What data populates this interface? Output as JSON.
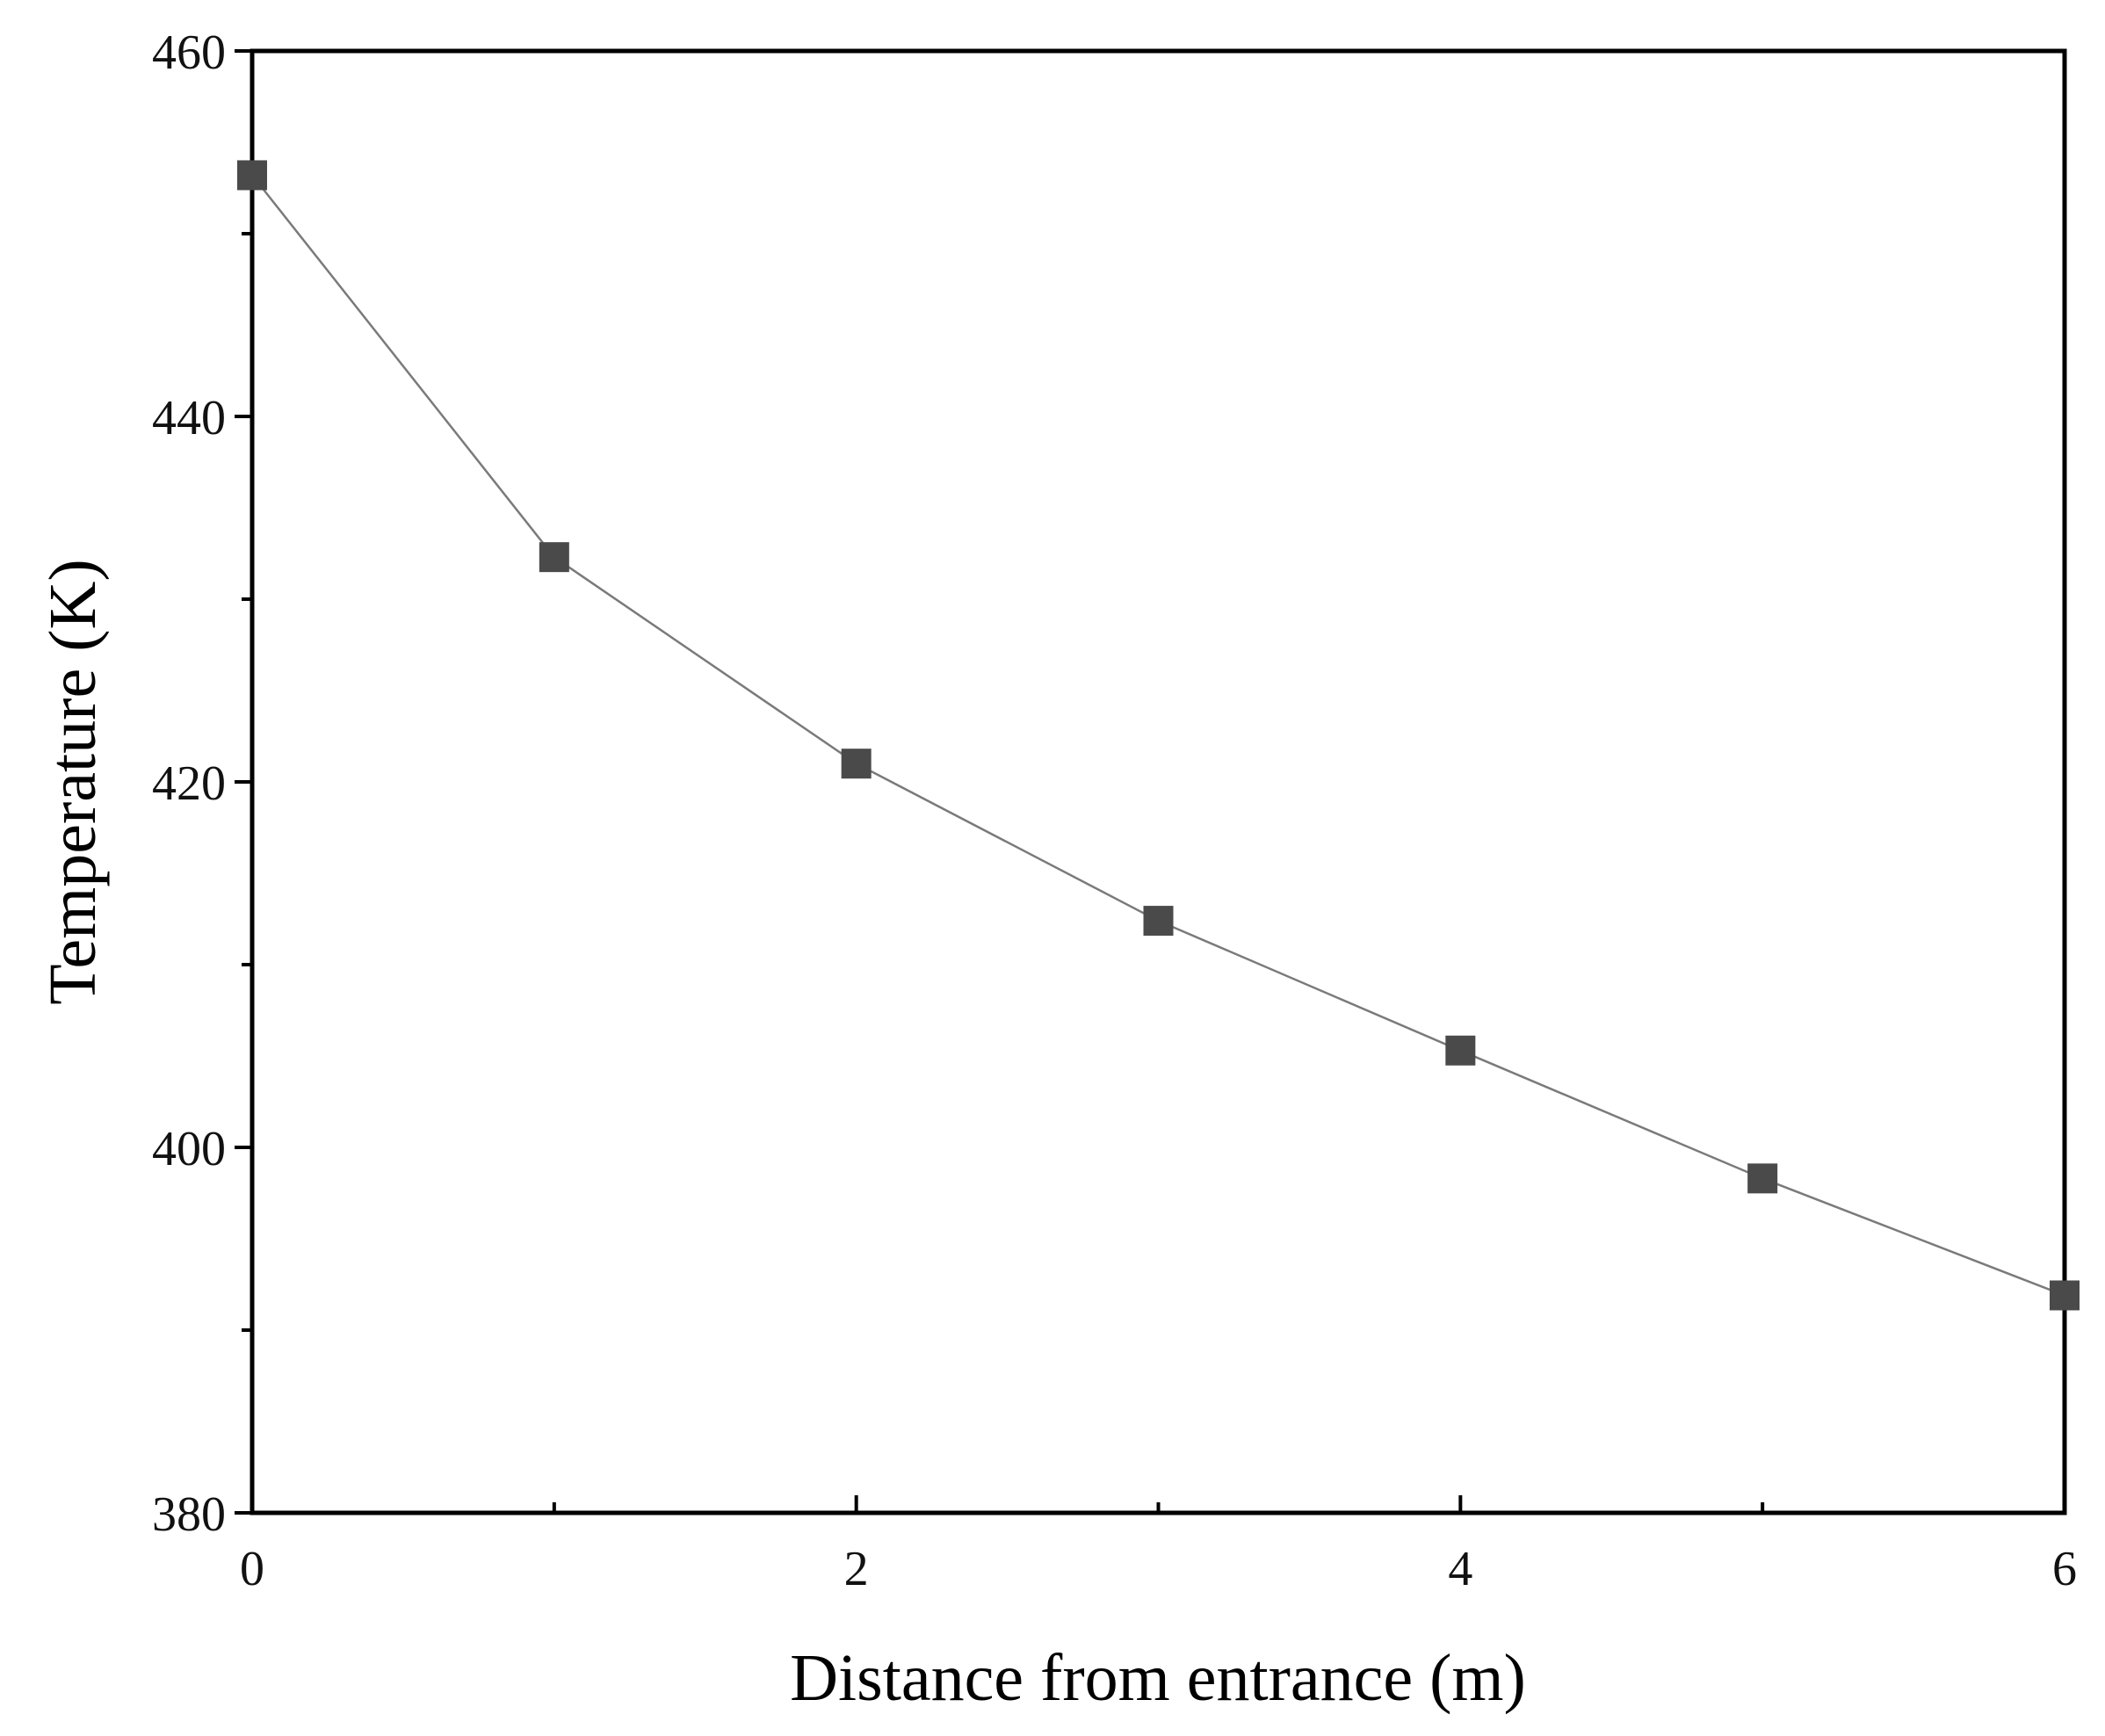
{
  "chart_data": {
    "type": "line",
    "title": "",
    "xlabel": "Distance from entrance (m)",
    "ylabel": "Temperature (K)",
    "xlim": [
      0,
      6
    ],
    "ylim": [
      380,
      460
    ],
    "x_ticks_major": [
      0,
      2,
      4,
      6
    ],
    "x_ticks_minor": [
      1,
      3,
      5
    ],
    "y_ticks_major": [
      380,
      400,
      420,
      440,
      460
    ],
    "y_ticks_minor": [
      390,
      410,
      430,
      450
    ],
    "grid": false,
    "legend": "none",
    "marker": "square",
    "line_color": "#7a7a7a",
    "marker_color": "#4a4a4a",
    "series": [
      {
        "x": [
          0,
          1,
          2,
          3,
          4,
          5,
          6
        ],
        "y": [
          453.2,
          432.3,
          421.0,
          412.4,
          405.3,
          398.3,
          391.9
        ]
      }
    ]
  }
}
